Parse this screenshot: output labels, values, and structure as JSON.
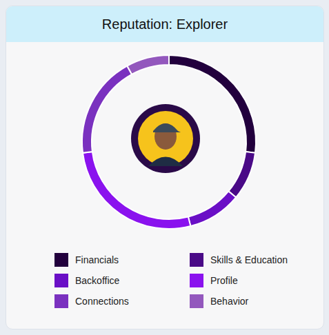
{
  "chart_data": {
    "type": "donut",
    "title": "Reputation: Explorer",
    "categories": [
      "Financials",
      "Skills & Education",
      "Backoffice",
      "Profile",
      "Connections",
      "Behavior"
    ],
    "values": [
      27,
      9,
      10,
      27,
      19,
      8
    ],
    "colors": [
      "#22003d",
      "#4a0a87",
      "#6a0fc6",
      "#8a12ee",
      "#7a31bf",
      "#9358bd"
    ],
    "legend": "bottom"
  }
}
